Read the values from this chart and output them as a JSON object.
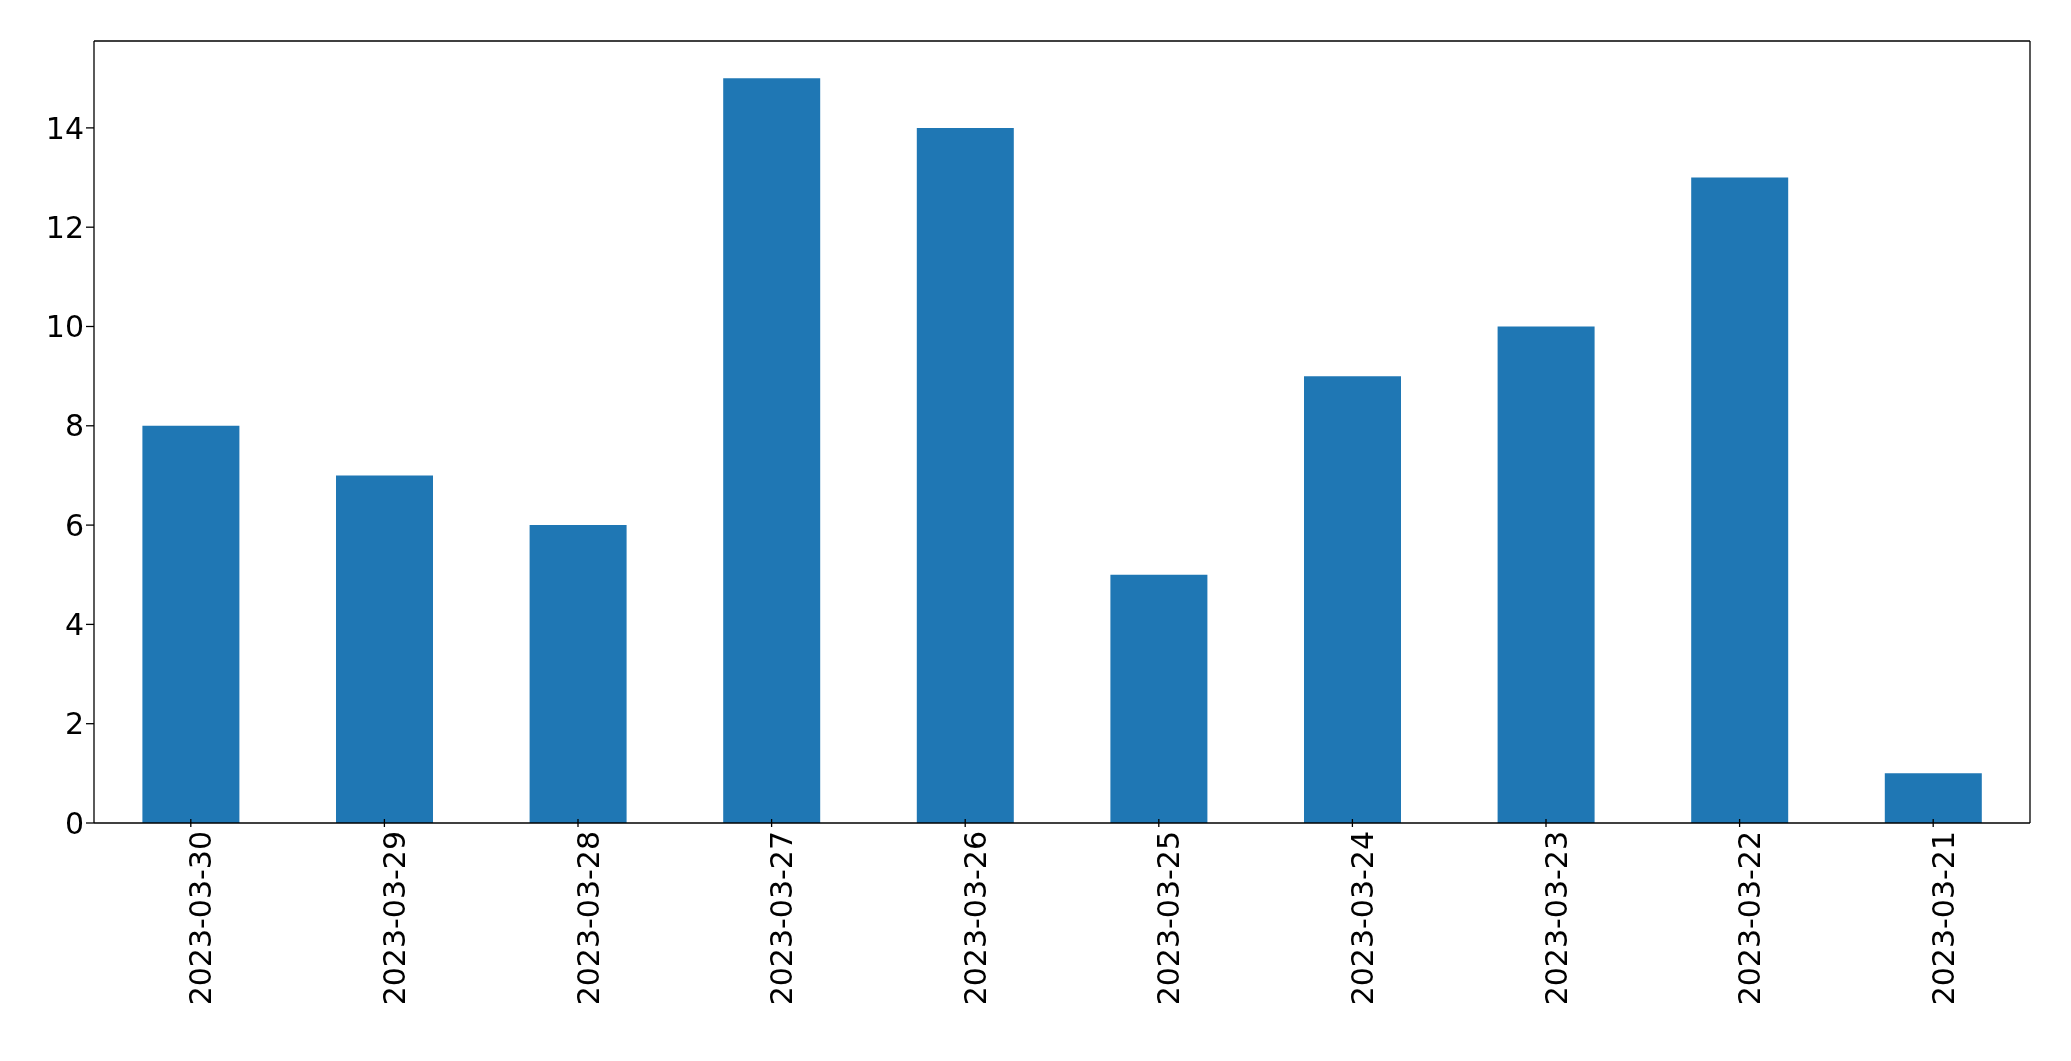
{
  "chart_data": {
    "type": "bar",
    "categories": [
      "2023-03-30",
      "2023-03-29",
      "2023-03-28",
      "2023-03-27",
      "2023-03-26",
      "2023-03-25",
      "2023-03-24",
      "2023-03-23",
      "2023-03-22",
      "2023-03-21"
    ],
    "values": [
      8,
      7,
      6,
      15,
      14,
      5,
      9,
      10,
      13,
      1
    ],
    "color": "#1f77b4",
    "ylim": [
      0,
      15.75
    ],
    "yticks": [
      0,
      2,
      4,
      6,
      8,
      10,
      12,
      14
    ],
    "grid": false
  }
}
